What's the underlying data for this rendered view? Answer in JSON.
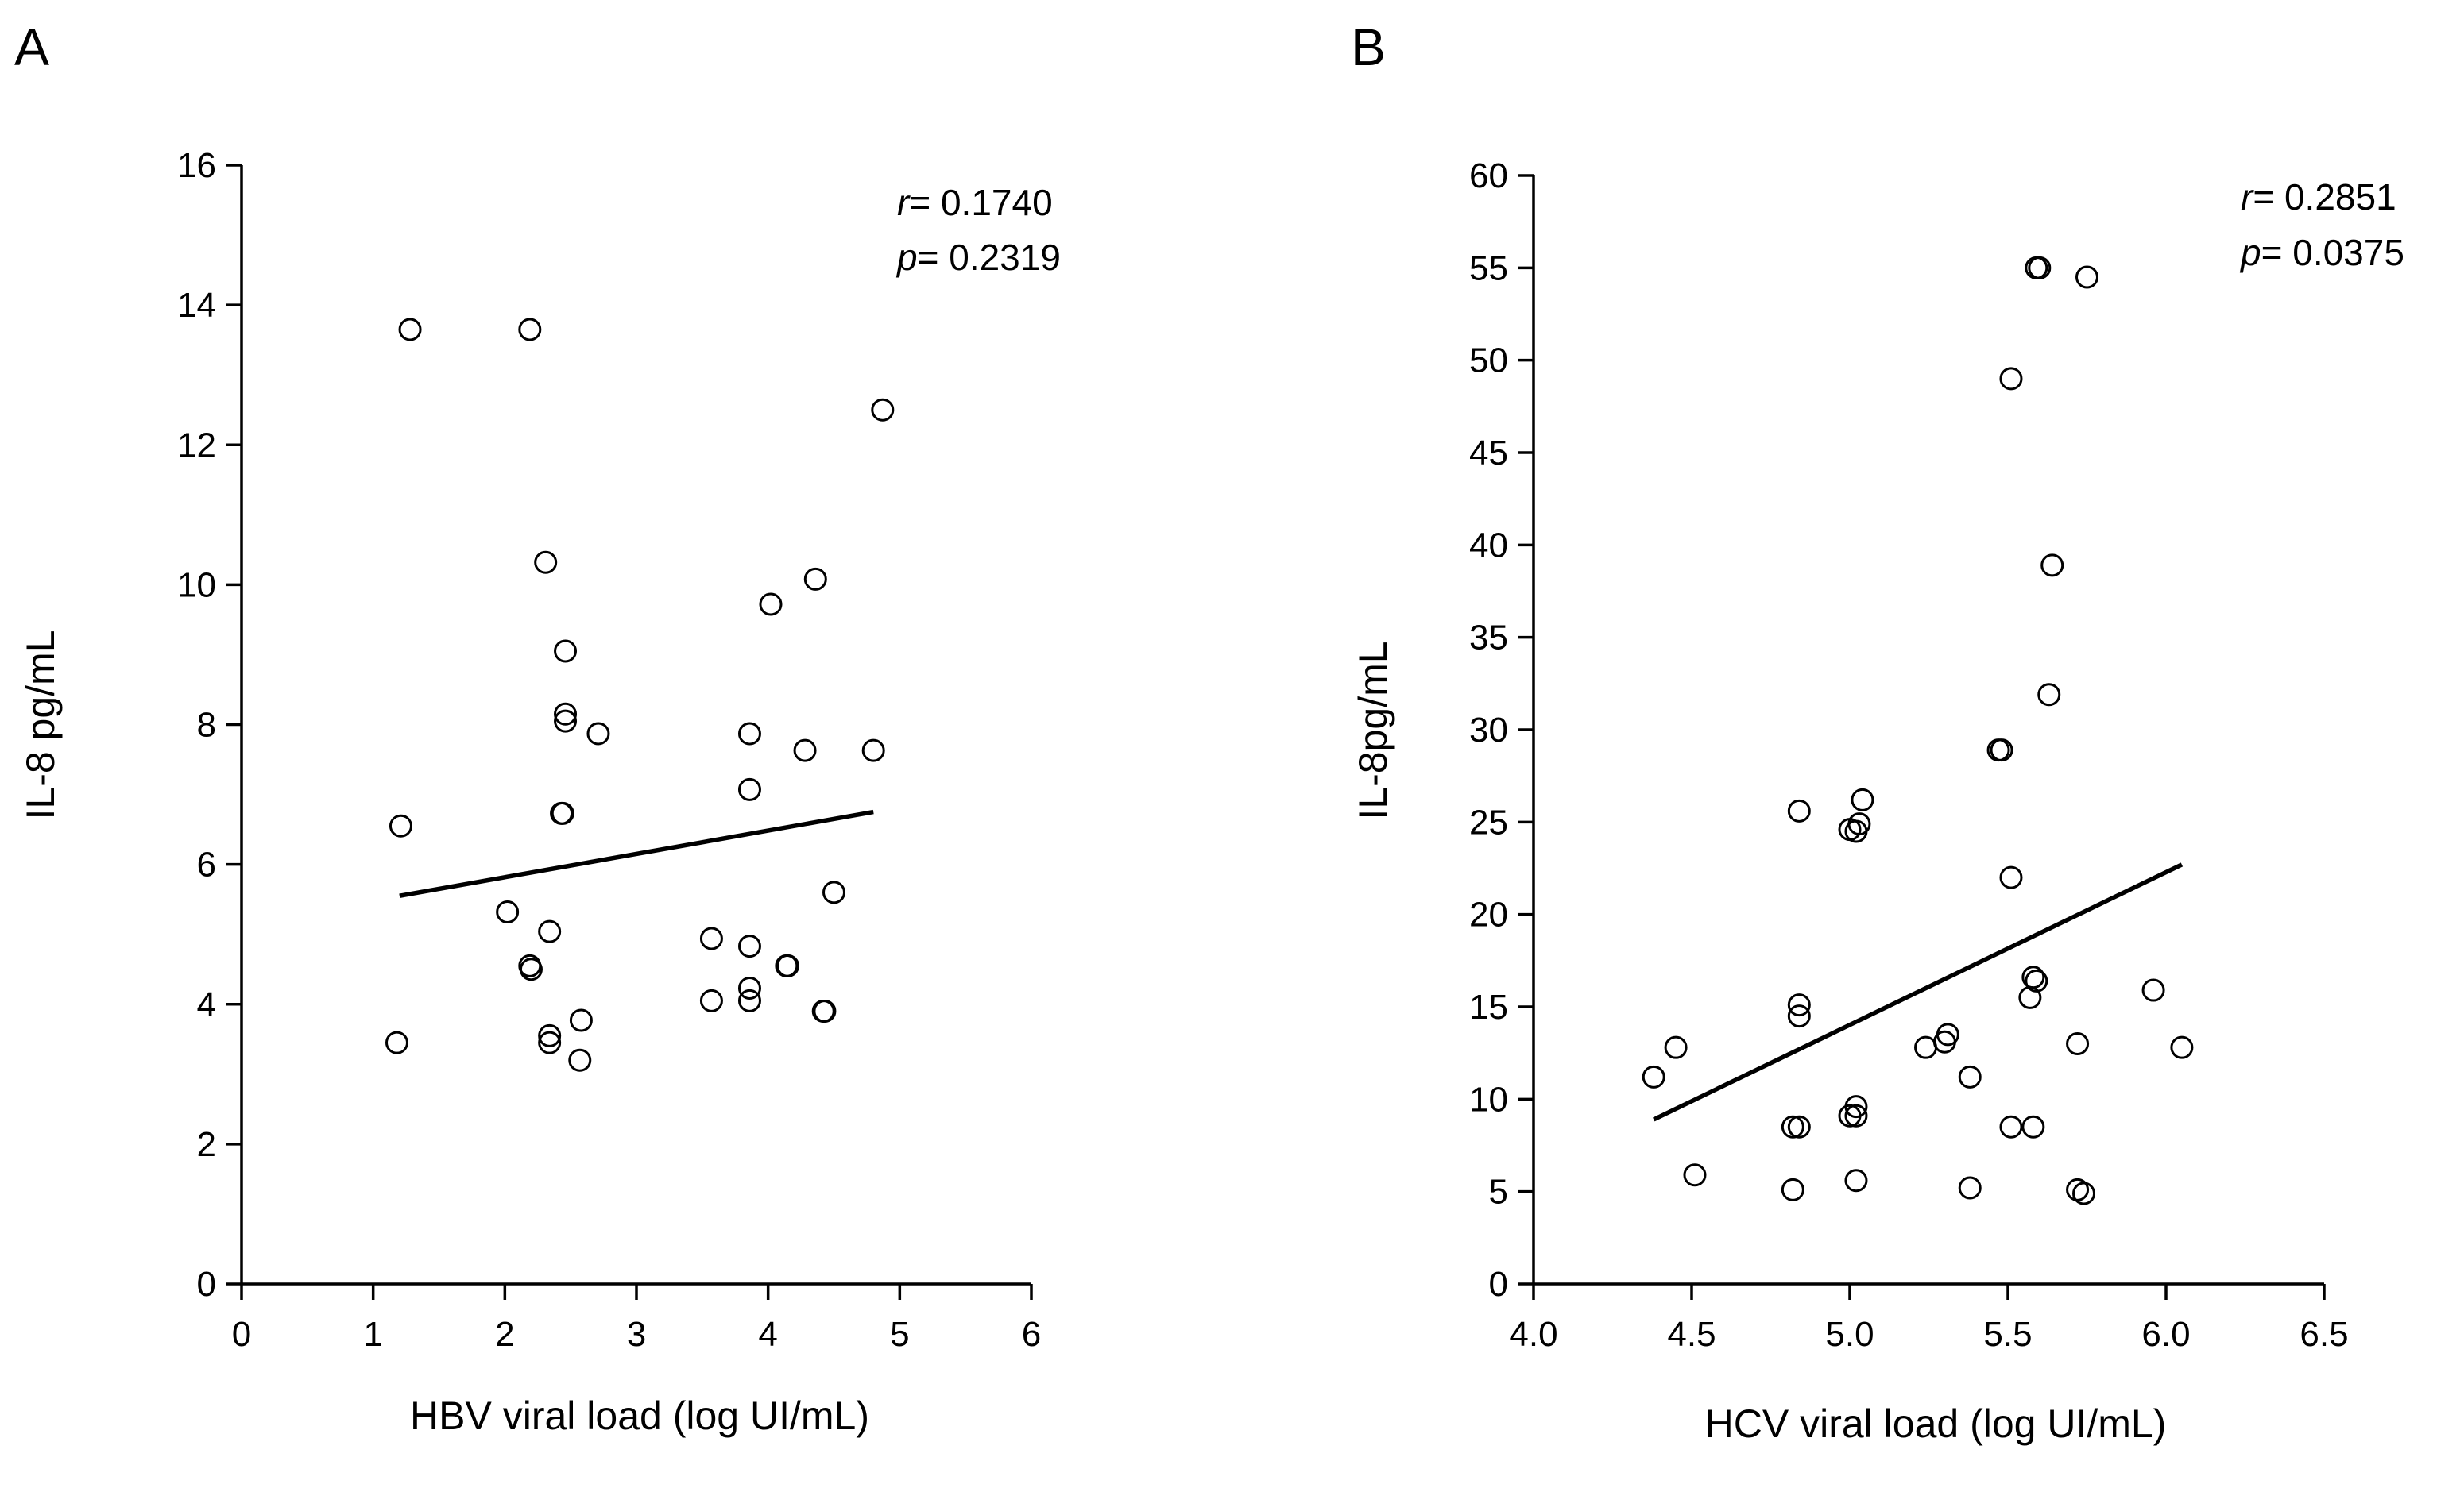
{
  "chart_data": [
    {
      "type": "scatter",
      "panel": "A",
      "title": "",
      "xlabel": "HBV viral load (log UI/mL)",
      "ylabel": "IL-8 pg/mL",
      "xlim": [
        0,
        6
      ],
      "ylim": [
        0,
        16
      ],
      "xticks": [
        0,
        1,
        2,
        3,
        4,
        5,
        6
      ],
      "yticks": [
        0,
        2,
        4,
        6,
        8,
        10,
        12,
        14,
        16
      ],
      "grid": false,
      "stats": {
        "r_label": "r",
        "r_value": "= 0.1740",
        "p_label": "p",
        "p_value": "= 0.2319"
      },
      "fit_line": {
        "x": [
          1.2,
          4.8
        ],
        "y": [
          5.55,
          6.75
        ]
      },
      "points": [
        {
          "x": 1.28,
          "y": 13.65
        },
        {
          "x": 2.19,
          "y": 13.65
        },
        {
          "x": 4.87,
          "y": 12.5
        },
        {
          "x": 2.31,
          "y": 10.32
        },
        {
          "x": 4.36,
          "y": 10.08
        },
        {
          "x": 4.02,
          "y": 9.72
        },
        {
          "x": 2.46,
          "y": 9.05
        },
        {
          "x": 2.46,
          "y": 8.15
        },
        {
          "x": 2.46,
          "y": 8.05
        },
        {
          "x": 2.71,
          "y": 7.87
        },
        {
          "x": 3.86,
          "y": 7.87
        },
        {
          "x": 4.28,
          "y": 7.63
        },
        {
          "x": 4.8,
          "y": 7.63
        },
        {
          "x": 3.86,
          "y": 7.07
        },
        {
          "x": 2.43,
          "y": 6.73
        },
        {
          "x": 2.44,
          "y": 6.73
        },
        {
          "x": 1.21,
          "y": 6.55
        },
        {
          "x": 4.5,
          "y": 5.6
        },
        {
          "x": 2.02,
          "y": 5.32
        },
        {
          "x": 2.34,
          "y": 5.04
        },
        {
          "x": 3.57,
          "y": 4.94
        },
        {
          "x": 3.86,
          "y": 4.83
        },
        {
          "x": 2.19,
          "y": 4.55
        },
        {
          "x": 2.2,
          "y": 4.5
        },
        {
          "x": 4.14,
          "y": 4.55
        },
        {
          "x": 4.15,
          "y": 4.55
        },
        {
          "x": 3.86,
          "y": 4.23
        },
        {
          "x": 3.57,
          "y": 4.05
        },
        {
          "x": 3.86,
          "y": 4.05
        },
        {
          "x": 4.42,
          "y": 3.9
        },
        {
          "x": 4.43,
          "y": 3.9
        },
        {
          "x": 2.58,
          "y": 3.77
        },
        {
          "x": 2.34,
          "y": 3.55
        },
        {
          "x": 2.34,
          "y": 3.45
        },
        {
          "x": 1.18,
          "y": 3.45
        },
        {
          "x": 2.57,
          "y": 3.2
        }
      ]
    },
    {
      "type": "scatter",
      "panel": "B",
      "title": "",
      "xlabel": "HCV viral load (log UI/mL)",
      "ylabel": "IL-8pg/mL",
      "xlim": [
        4.0,
        6.5
      ],
      "ylim": [
        0,
        60
      ],
      "xticks": [
        "4.0",
        "4.5",
        "5.0",
        "5.5",
        "6.0",
        "6.5"
      ],
      "yticks": [
        0,
        5,
        10,
        15,
        20,
        25,
        30,
        35,
        40,
        45,
        50,
        55,
        60
      ],
      "grid": false,
      "stats": {
        "r_label": "r",
        "r_value": "= 0.2851",
        "p_label": "p",
        "p_value": "= 0.0375"
      },
      "fit_line": {
        "x": [
          4.38,
          6.05
        ],
        "y": [
          8.9,
          22.7
        ]
      },
      "points": [
        {
          "x": 5.59,
          "y": 55.0
        },
        {
          "x": 5.6,
          "y": 55.0
        },
        {
          "x": 5.75,
          "y": 54.5
        },
        {
          "x": 5.51,
          "y": 49.0
        },
        {
          "x": 5.64,
          "y": 38.9
        },
        {
          "x": 5.63,
          "y": 31.9
        },
        {
          "x": 5.47,
          "y": 28.9
        },
        {
          "x": 5.48,
          "y": 28.9
        },
        {
          "x": 5.04,
          "y": 26.2
        },
        {
          "x": 4.84,
          "y": 25.6
        },
        {
          "x": 5.0,
          "y": 24.6
        },
        {
          "x": 5.03,
          "y": 24.9
        },
        {
          "x": 5.02,
          "y": 24.5
        },
        {
          "x": 5.51,
          "y": 22.0
        },
        {
          "x": 5.58,
          "y": 16.6
        },
        {
          "x": 5.59,
          "y": 16.4
        },
        {
          "x": 5.96,
          "y": 15.9
        },
        {
          "x": 5.57,
          "y": 15.5
        },
        {
          "x": 4.84,
          "y": 15.1
        },
        {
          "x": 4.84,
          "y": 14.5
        },
        {
          "x": 5.31,
          "y": 13.5
        },
        {
          "x": 5.3,
          "y": 13.1
        },
        {
          "x": 4.45,
          "y": 12.8
        },
        {
          "x": 5.24,
          "y": 12.8
        },
        {
          "x": 5.72,
          "y": 13.0
        },
        {
          "x": 6.05,
          "y": 12.8
        },
        {
          "x": 4.38,
          "y": 11.2
        },
        {
          "x": 5.38,
          "y": 11.2
        },
        {
          "x": 5.02,
          "y": 9.6
        },
        {
          "x": 5.0,
          "y": 9.1
        },
        {
          "x": 5.02,
          "y": 9.1
        },
        {
          "x": 4.82,
          "y": 8.5
        },
        {
          "x": 4.84,
          "y": 8.5
        },
        {
          "x": 5.51,
          "y": 8.5
        },
        {
          "x": 5.58,
          "y": 8.5
        },
        {
          "x": 4.51,
          "y": 5.9
        },
        {
          "x": 5.02,
          "y": 5.6
        },
        {
          "x": 4.82,
          "y": 5.1
        },
        {
          "x": 5.38,
          "y": 5.2
        },
        {
          "x": 5.72,
          "y": 5.1
        },
        {
          "x": 5.74,
          "y": 4.9
        }
      ]
    }
  ]
}
